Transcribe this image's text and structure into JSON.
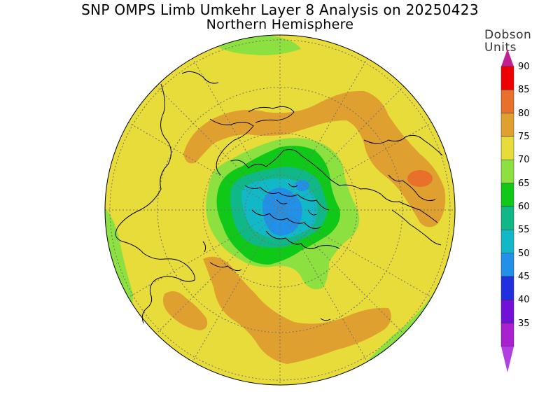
{
  "title": {
    "line1": "SNP OMPS Limb Umkehr Layer 8 Analysis on 20250423",
    "line2": "Northern Hemisphere"
  },
  "units": {
    "line1": "Dobson",
    "line2": "Units"
  },
  "colorbar": {
    "labels": [
      "90",
      "85",
      "80",
      "75",
      "70",
      "65",
      "60",
      "55",
      "50",
      "45",
      "40",
      "35"
    ],
    "colors": [
      "#ee0000",
      "#e8702a",
      "#e0a030",
      "#e8dc3a",
      "#8ce040",
      "#10c818",
      "#10b888",
      "#10b8c8",
      "#2090e8",
      "#2030e0",
      "#7010d8",
      "#a820d0"
    ],
    "top_arrow_color": "#c02090",
    "bottom_arrow_color": "#b040e0"
  },
  "map": {
    "projection": "north-polar-stereographic",
    "background_color": "#e8dc3a"
  }
}
